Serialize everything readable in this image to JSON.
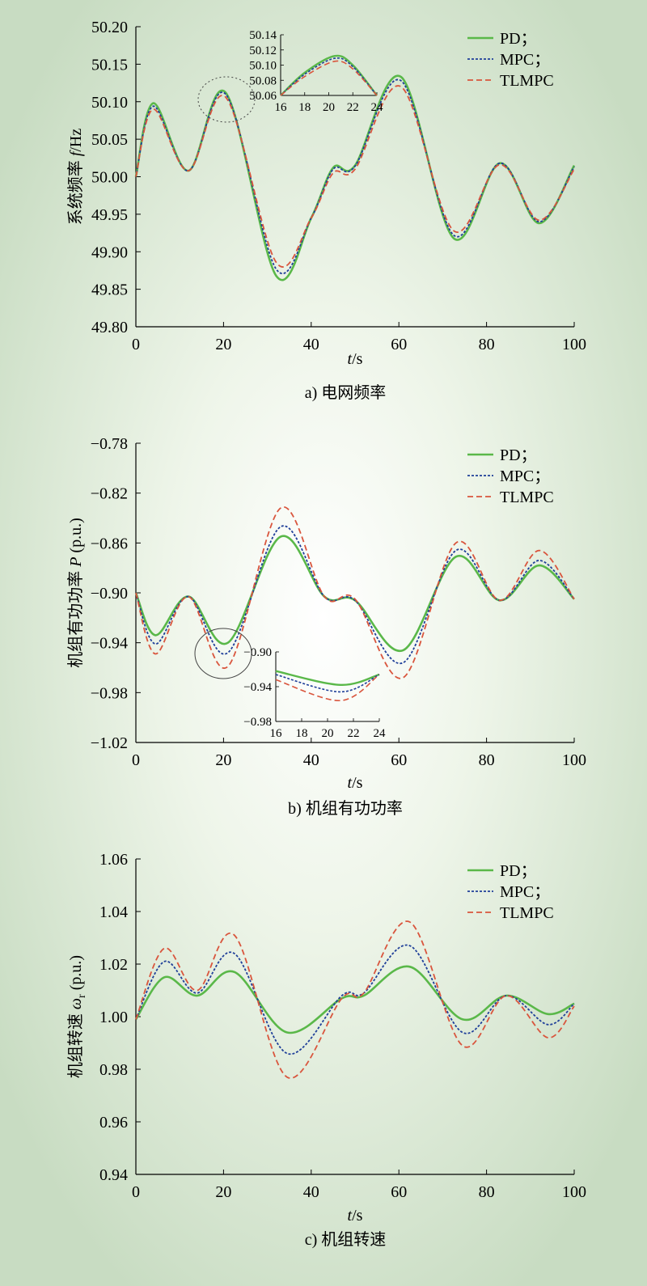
{
  "chart_data": [
    {
      "type": "line",
      "caption": "a) 电网频率",
      "xlabel_italic": "t",
      "xlabel_rest": "/s",
      "ylabel_text": "系统频率 ",
      "ylabel_italic": "f",
      "ylabel_rest": "/Hz",
      "xlim": [
        0,
        100
      ],
      "ylim": [
        49.8,
        50.2
      ],
      "xticks": [
        0,
        20,
        40,
        60,
        80,
        100
      ],
      "xtick_labels": [
        "0",
        "20",
        "40",
        "60",
        "80",
        "100"
      ],
      "yticks": [
        49.8,
        49.85,
        49.9,
        49.95,
        50.0,
        50.05,
        50.1,
        50.15,
        50.2
      ],
      "ytick_labels": [
        "49.80",
        "49.85",
        "49.90",
        "49.95",
        "50.00",
        "50.05",
        "50.10",
        "50.15",
        "50.20"
      ],
      "legend": [
        "PD；",
        "MPC；",
        "TLMPC"
      ],
      "legend_position": "top-right",
      "series": [
        {
          "name": "PD",
          "color": "#5ab849",
          "style": "solid",
          "x": [
            0,
            4,
            12,
            20.5,
            32,
            40,
            45,
            50,
            60.5,
            72.5,
            83,
            92,
            100
          ],
          "y": [
            50.0,
            50.098,
            50.008,
            50.112,
            49.868,
            49.945,
            50.012,
            50.015,
            50.133,
            49.918,
            50.018,
            49.938,
            50.015
          ]
        },
        {
          "name": "MPC",
          "color": "#1f3f99",
          "style": "dotted",
          "x": [
            0,
            4,
            12,
            20.5,
            32,
            40,
            45,
            50,
            60.5,
            72.5,
            83,
            92,
            100
          ],
          "y": [
            50.0,
            50.094,
            50.008,
            50.11,
            49.877,
            49.945,
            50.01,
            50.014,
            50.128,
            49.922,
            50.018,
            49.94,
            50.013
          ]
        },
        {
          "name": "TLMPC",
          "color": "#d9553d",
          "style": "dashed",
          "x": [
            0,
            4,
            12,
            20.5,
            32,
            40,
            45,
            50,
            60.5,
            72.5,
            83,
            92,
            100
          ],
          "y": [
            50.0,
            50.09,
            50.008,
            50.106,
            49.886,
            49.945,
            50.005,
            50.01,
            50.12,
            49.928,
            50.016,
            49.942,
            50.01
          ]
        }
      ],
      "inset": {
        "xlim": [
          16,
          24
        ],
        "ylim": [
          50.06,
          50.14
        ],
        "xticks": [
          16,
          18,
          20,
          22,
          24
        ],
        "xtick_labels": [
          "16",
          "18",
          "20",
          "22",
          "24"
        ],
        "yticks": [
          50.06,
          50.08,
          50.1,
          50.12,
          50.14
        ],
        "ytick_labels": [
          "50.06",
          "50.08",
          "50.10",
          "50.12",
          "50.14"
        ],
        "series": [
          {
            "name": "PD",
            "x": [
              16,
              18,
              20.5,
              22,
              24
            ],
            "y": [
              50.06,
              50.09,
              50.112,
              50.1,
              50.06
            ]
          },
          {
            "name": "MPC",
            "x": [
              16,
              18,
              20.5,
              22,
              24
            ],
            "y": [
              50.06,
              50.088,
              50.109,
              50.098,
              50.06
            ]
          },
          {
            "name": "TLMPC",
            "x": [
              16,
              18,
              20.5,
              22,
              24
            ],
            "y": [
              50.06,
              50.085,
              50.105,
              50.095,
              50.06
            ]
          }
        ]
      }
    },
    {
      "type": "line",
      "caption": "b) 机组有功功率",
      "xlabel_italic": "t",
      "xlabel_rest": "/s",
      "ylabel_text": "机组有功功率 ",
      "ylabel_italic": "P",
      "ylabel_rest": " (p.u.)",
      "xlim": [
        0,
        100
      ],
      "ylim": [
        -1.02,
        -0.78
      ],
      "xticks": [
        0,
        20,
        40,
        60,
        80,
        100
      ],
      "xtick_labels": [
        "0",
        "20",
        "40",
        "60",
        "80",
        "100"
      ],
      "yticks": [
        -1.02,
        -0.98,
        -0.94,
        -0.9,
        -0.86,
        -0.82,
        -0.78
      ],
      "ytick_labels": [
        "−1.02",
        "−0.98",
        "−0.94",
        "−0.90",
        "−0.86",
        "−0.82",
        "−0.78"
      ],
      "legend": [
        "PD；",
        "MPC；",
        "TLMPC"
      ],
      "legend_position": "top-right",
      "series": [
        {
          "name": "PD",
          "color": "#5ab849",
          "style": "solid",
          "x": [
            0,
            4.5,
            12,
            21,
            33,
            43,
            50,
            61,
            73,
            83,
            92,
            100
          ],
          "y": [
            -0.9,
            -0.934,
            -0.903,
            -0.94,
            -0.855,
            -0.903,
            -0.906,
            -0.946,
            -0.871,
            -0.906,
            -0.878,
            -0.905
          ]
        },
        {
          "name": "MPC",
          "color": "#1f3f99",
          "style": "dotted",
          "x": [
            0,
            4.5,
            12,
            21,
            33,
            43,
            50,
            61,
            73,
            83,
            92,
            100
          ],
          "y": [
            -0.9,
            -0.941,
            -0.903,
            -0.948,
            -0.847,
            -0.903,
            -0.906,
            -0.956,
            -0.866,
            -0.906,
            -0.874,
            -0.905
          ]
        },
        {
          "name": "TLMPC",
          "color": "#d9553d",
          "style": "dashed",
          "x": [
            0,
            4.5,
            12,
            21,
            33,
            43,
            50,
            61,
            73,
            83,
            92,
            100
          ],
          "y": [
            -0.9,
            -0.949,
            -0.903,
            -0.959,
            -0.832,
            -0.903,
            -0.905,
            -0.968,
            -0.86,
            -0.906,
            -0.866,
            -0.905
          ]
        }
      ],
      "inset": {
        "xlim": [
          16,
          24
        ],
        "ylim": [
          -0.98,
          -0.9
        ],
        "xticks": [
          16,
          18,
          20,
          22,
          24
        ],
        "xtick_labels": [
          "16",
          "18",
          "20",
          "22",
          "24"
        ],
        "yticks": [
          -0.98,
          -0.94,
          -0.9
        ],
        "ytick_labels": [
          "−0.98",
          "−0.94",
          "−0.90"
        ],
        "series": [
          {
            "name": "PD",
            "x": [
              16,
              21,
              24
            ],
            "y": [
              -0.922,
              -0.938,
              -0.926
            ]
          },
          {
            "name": "MPC",
            "x": [
              16,
              21,
              24
            ],
            "y": [
              -0.926,
              -0.946,
              -0.926
            ]
          },
          {
            "name": "TLMPC",
            "x": [
              16,
              21,
              24
            ],
            "y": [
              -0.932,
              -0.956,
              -0.926
            ]
          }
        ]
      }
    },
    {
      "type": "line",
      "caption": "c) 机组转速",
      "xlabel_italic": "t",
      "xlabel_rest": "/s",
      "ylabel_text": "机组转速 ",
      "ylabel_italic": "ω",
      "ylabel_sub": "r",
      "ylabel_rest": " (p.u.)",
      "xlim": [
        0,
        100
      ],
      "ylim": [
        0.94,
        1.06
      ],
      "xticks": [
        0,
        20,
        40,
        60,
        80,
        100
      ],
      "xtick_labels": [
        "0",
        "20",
        "40",
        "60",
        "80",
        "100"
      ],
      "yticks": [
        0.94,
        0.96,
        0.98,
        1.0,
        1.02,
        1.04,
        1.06
      ],
      "ytick_labels": [
        "0.94",
        "0.96",
        "0.98",
        "1.00",
        "1.02",
        "1.04",
        "1.06"
      ],
      "legend": [
        "PD；",
        "MPC；",
        "TLMPC"
      ],
      "legend_position": "top-right",
      "series": [
        {
          "name": "PD",
          "color": "#5ab849",
          "style": "solid",
          "x": [
            0,
            6.5,
            14,
            22.5,
            34.5,
            47,
            52,
            62.5,
            74.5,
            84.5,
            94,
            100
          ],
          "y": [
            0.999,
            1.015,
            1.008,
            1.017,
            0.994,
            1.007,
            1.008,
            1.019,
            0.999,
            1.008,
            1.001,
            1.005
          ]
        },
        {
          "name": "MPC",
          "color": "#1f3f99",
          "style": "dotted",
          "x": [
            0,
            6.5,
            14,
            22.5,
            34.5,
            47,
            52,
            62.5,
            74.5,
            84.5,
            94,
            100
          ],
          "y": [
            0.999,
            1.021,
            1.009,
            1.024,
            0.986,
            1.008,
            1.009,
            1.027,
            0.994,
            1.008,
            0.997,
            1.005
          ]
        },
        {
          "name": "TLMPC",
          "color": "#d9553d",
          "style": "dashed",
          "x": [
            0,
            6.5,
            14,
            22.5,
            34.5,
            47,
            52,
            62.5,
            74.5,
            84.5,
            94,
            100
          ],
          "y": [
            0.999,
            1.026,
            1.01,
            1.031,
            0.977,
            1.007,
            1.009,
            1.036,
            0.989,
            1.008,
            0.992,
            1.004
          ]
        }
      ]
    }
  ]
}
